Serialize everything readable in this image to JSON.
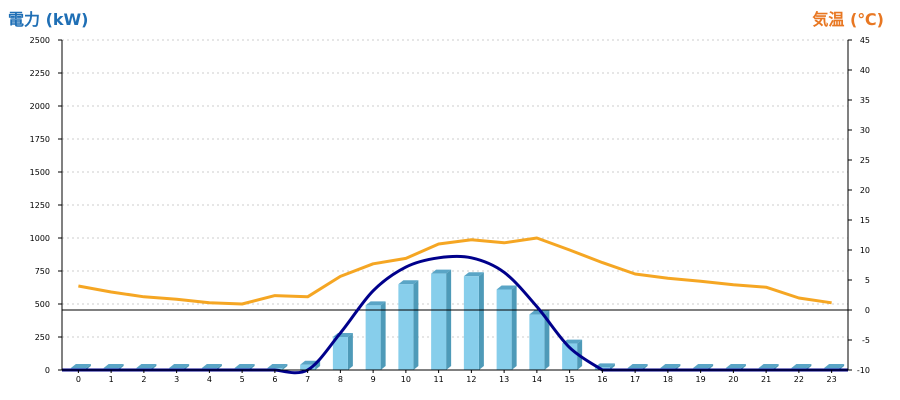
{
  "titles": {
    "left_axis": "電力 (kW)",
    "right_axis": "気温 (℃)"
  },
  "colors": {
    "power_title": "#1f6fb5",
    "temp_title": "#e87722",
    "bars": "#87ceeb",
    "curve": "#00008b",
    "temperature": "#f5a623",
    "grid": "#cccccc",
    "zero_line": "#000000"
  },
  "chart_data": {
    "type": "bar",
    "x_ticks": [
      "0",
      "1",
      "2",
      "3",
      "4",
      "5",
      "6",
      "7",
      "8",
      "9",
      "10",
      "11",
      "12",
      "13",
      "14",
      "15",
      "16",
      "17",
      "18",
      "19",
      "20",
      "21",
      "22",
      "23"
    ],
    "left_ticks": [
      "0",
      "250",
      "500",
      "750",
      "1000",
      "1250",
      "1500",
      "1750",
      "2000",
      "2250",
      "2500"
    ],
    "right_ticks": [
      "-10",
      "-5",
      "0",
      "5",
      "10",
      "15",
      "20",
      "25",
      "30",
      "35",
      "40",
      "45"
    ],
    "y_left_lim": [
      0,
      2500
    ],
    "y_right_lim": [
      -10,
      45
    ],
    "grid": true,
    "series": [
      {
        "type": "bar",
        "axis": "left",
        "values": [
          0,
          0,
          0,
          0,
          0,
          0,
          0,
          40,
          250,
          490,
          650,
          730,
          710,
          610,
          420,
          200,
          20,
          0,
          0,
          0,
          0,
          0,
          0,
          0
        ]
      },
      {
        "type": "line",
        "axis": "left",
        "values": [
          0,
          0,
          0,
          0,
          0,
          0,
          0,
          0,
          280,
          600,
          780,
          850,
          850,
          740,
          480,
          170,
          0,
          0,
          0,
          0,
          0,
          0,
          0,
          0
        ]
      },
      {
        "type": "line",
        "axis": "right",
        "values": [
          4,
          3,
          2.2,
          1.8,
          1.2,
          1,
          2.4,
          2.2,
          5.6,
          7.7,
          8.6,
          11,
          11.7,
          11.2,
          12,
          10,
          7.9,
          6,
          5.3,
          4.8,
          4.2,
          3.8,
          2,
          1.2
        ]
      }
    ]
  }
}
